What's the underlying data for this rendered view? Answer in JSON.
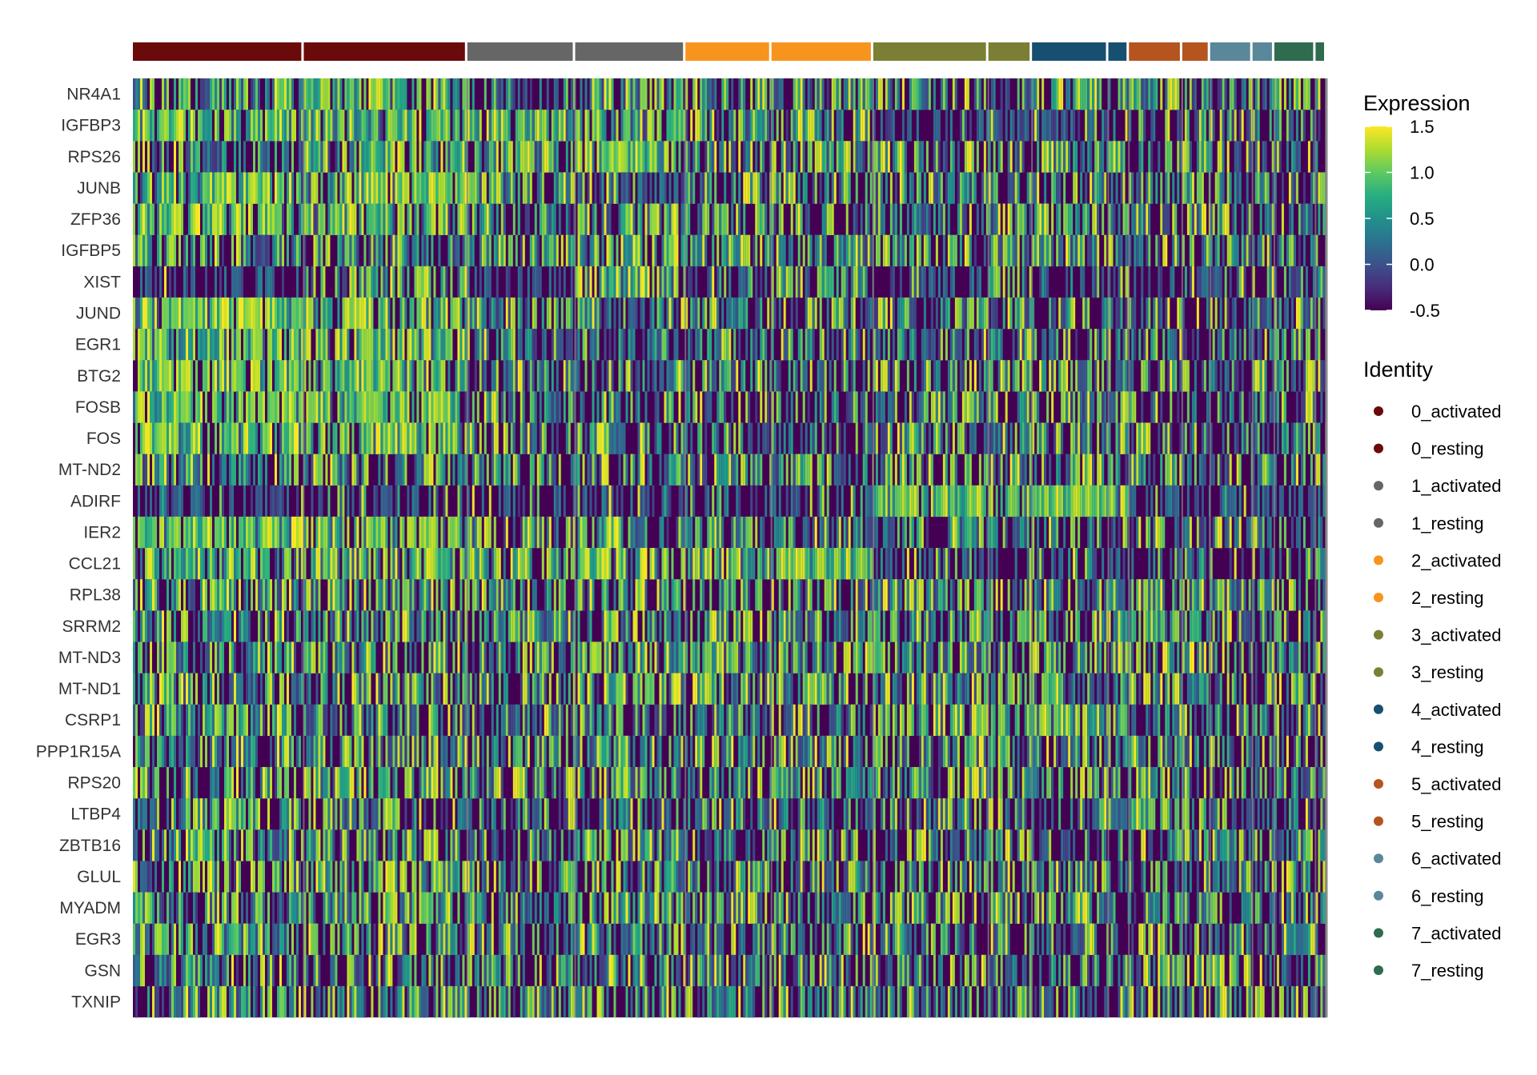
{
  "chart_data": {
    "type": "heatmap",
    "title": "",
    "xlabel": "",
    "ylabel": "",
    "genes": [
      "NR4A1",
      "IGFBP3",
      "RPS26",
      "JUNB",
      "ZFP36",
      "IGFBP5",
      "XIST",
      "JUND",
      "EGR1",
      "BTG2",
      "FOSB",
      "FOS",
      "MT-ND2",
      "ADIRF",
      "IER2",
      "CCL21",
      "RPL38",
      "SRRM2",
      "MT-ND3",
      "MT-ND1",
      "CSRP1",
      "PPP1R15A",
      "RPS20",
      "LTBP4",
      "ZBTB16",
      "GLUL",
      "MYADM",
      "EGR3",
      "GSN",
      "TXNIP"
    ],
    "identities": [
      {
        "name": "0_activated",
        "color": "#6b0a0a",
        "share": 0.141
      },
      {
        "name": "0_resting",
        "color": "#6b0a0a",
        "share": 0.135
      },
      {
        "name": "1_activated",
        "color": "#666666",
        "share": 0.089
      },
      {
        "name": "1_resting",
        "color": "#666666",
        "share": 0.091
      },
      {
        "name": "2_activated",
        "color": "#f7941d",
        "share": 0.071
      },
      {
        "name": "2_resting",
        "color": "#f7941d",
        "share": 0.084
      },
      {
        "name": "3_activated",
        "color": "#7a7f35",
        "share": 0.095
      },
      {
        "name": "3_resting",
        "color": "#7a7f35",
        "share": 0.036
      },
      {
        "name": "4_activated",
        "color": "#174f70",
        "share": 0.063
      },
      {
        "name": "4_resting",
        "color": "#174f70",
        "share": 0.017
      },
      {
        "name": "5_activated",
        "color": "#b5541f",
        "share": 0.044
      },
      {
        "name": "5_resting",
        "color": "#b5541f",
        "share": 0.023
      },
      {
        "name": "6_activated",
        "color": "#5a8799",
        "share": 0.035
      },
      {
        "name": "6_resting",
        "color": "#5a8799",
        "share": 0.018
      },
      {
        "name": "7_activated",
        "color": "#2e6b4f",
        "share": 0.034
      },
      {
        "name": "7_resting",
        "color": "#2e6b4f",
        "share": 0.009
      }
    ],
    "expression_scale": {
      "title": "Expression",
      "min": -0.5,
      "max": 1.5,
      "ticks": [
        "1.5",
        "1.0",
        "0.5",
        "0.0",
        "-0.5"
      ],
      "colormap": "viridis"
    },
    "legend": {
      "title": "Identity",
      "placement": "right"
    },
    "high_expression_pattern": {
      "NR4A1": [
        0.55,
        0.75,
        0.3,
        0.55,
        0.45,
        0.35,
        0.4,
        0.35,
        0.5,
        0.3,
        0.4,
        0.3,
        0.45,
        0.4,
        0.5,
        0.4
      ],
      "IGFBP3": [
        0.8,
        0.75,
        0.8,
        0.7,
        0.6,
        0.55,
        0.05,
        0.05,
        0.1,
        0.05,
        0.3,
        0.2,
        0.3,
        0.2,
        0.35,
        0.3
      ],
      "RPS26": [
        0.3,
        0.75,
        0.5,
        0.7,
        0.3,
        0.65,
        0.45,
        0.35,
        0.45,
        0.4,
        0.4,
        0.35,
        0.35,
        0.4,
        0.3,
        0.3
      ],
      "JUNB": [
        0.85,
        0.8,
        0.45,
        0.3,
        0.4,
        0.35,
        0.4,
        0.4,
        0.35,
        0.3,
        0.4,
        0.3,
        0.3,
        0.3,
        0.3,
        0.35
      ],
      "ZFP36": [
        0.75,
        0.75,
        0.35,
        0.3,
        0.4,
        0.35,
        0.45,
        0.45,
        0.4,
        0.3,
        0.35,
        0.3,
        0.3,
        0.35,
        0.3,
        0.35
      ],
      "IGFBP5": [
        0.45,
        0.4,
        0.55,
        0.55,
        0.5,
        0.45,
        0.6,
        0.6,
        0.55,
        0.4,
        0.35,
        0.35,
        0.3,
        0.3,
        0.3,
        0.35
      ],
      "XIST": [
        0.02,
        0.45,
        0.02,
        0.5,
        0.05,
        0.5,
        0.05,
        0.6,
        0.1,
        0.4,
        0.1,
        0.35,
        0.15,
        0.3,
        0.05,
        0.4
      ],
      "JUND": [
        0.85,
        0.7,
        0.4,
        0.3,
        0.4,
        0.3,
        0.35,
        0.3,
        0.3,
        0.25,
        0.3,
        0.3,
        0.3,
        0.3,
        0.3,
        0.3
      ],
      "EGR1": [
        0.7,
        0.8,
        0.3,
        0.25,
        0.35,
        0.3,
        0.4,
        0.45,
        0.35,
        0.35,
        0.35,
        0.3,
        0.3,
        0.3,
        0.3,
        0.3
      ],
      "BTG2": [
        0.75,
        0.8,
        0.35,
        0.3,
        0.4,
        0.3,
        0.45,
        0.5,
        0.4,
        0.4,
        0.3,
        0.35,
        0.3,
        0.3,
        0.3,
        0.3
      ],
      "FOSB": [
        0.8,
        0.85,
        0.3,
        0.25,
        0.35,
        0.3,
        0.35,
        0.4,
        0.35,
        0.35,
        0.3,
        0.3,
        0.3,
        0.3,
        0.3,
        0.3
      ],
      "FOS": [
        0.8,
        0.75,
        0.35,
        0.3,
        0.35,
        0.3,
        0.35,
        0.35,
        0.3,
        0.3,
        0.3,
        0.3,
        0.3,
        0.3,
        0.3,
        0.3
      ],
      "MT-ND2": [
        0.45,
        0.5,
        0.35,
        0.55,
        0.4,
        0.45,
        0.4,
        0.4,
        0.4,
        0.35,
        0.35,
        0.35,
        0.35,
        0.35,
        0.35,
        0.35
      ],
      "ADIRF": [
        0.1,
        0.1,
        0.1,
        0.1,
        0.15,
        0.1,
        0.9,
        0.75,
        0.95,
        0.9,
        0.15,
        0.15,
        0.2,
        0.15,
        0.15,
        0.15
      ],
      "IER2": [
        0.8,
        0.75,
        0.4,
        0.35,
        0.4,
        0.35,
        0.4,
        0.4,
        0.35,
        0.35,
        0.3,
        0.3,
        0.3,
        0.3,
        0.3,
        0.3
      ],
      "CCL21": [
        0.7,
        0.7,
        0.65,
        0.65,
        0.7,
        0.75,
        0.15,
        0.15,
        0.1,
        0.1,
        0.15,
        0.15,
        0.15,
        0.15,
        0.2,
        0.2
      ],
      "RPL38": [
        0.45,
        0.5,
        0.4,
        0.45,
        0.4,
        0.45,
        0.4,
        0.4,
        0.35,
        0.35,
        0.4,
        0.4,
        0.35,
        0.35,
        0.35,
        0.35
      ],
      "SRRM2": [
        0.45,
        0.45,
        0.45,
        0.45,
        0.45,
        0.45,
        0.45,
        0.45,
        0.4,
        0.4,
        0.45,
        0.45,
        0.4,
        0.4,
        0.4,
        0.4
      ],
      "MT-ND3": [
        0.45,
        0.45,
        0.4,
        0.65,
        0.45,
        0.45,
        0.4,
        0.45,
        0.35,
        0.4,
        0.45,
        0.4,
        0.35,
        0.35,
        0.35,
        0.35
      ],
      "MT-ND1": [
        0.45,
        0.45,
        0.4,
        0.6,
        0.45,
        0.45,
        0.45,
        0.5,
        0.35,
        0.4,
        0.5,
        0.4,
        0.35,
        0.35,
        0.35,
        0.35
      ],
      "CSRP1": [
        0.45,
        0.4,
        0.3,
        0.35,
        0.35,
        0.35,
        0.6,
        0.55,
        0.65,
        0.5,
        0.35,
        0.35,
        0.3,
        0.3,
        0.3,
        0.3
      ],
      "PPP1R15A": [
        0.5,
        0.55,
        0.4,
        0.4,
        0.45,
        0.4,
        0.5,
        0.5,
        0.45,
        0.4,
        0.4,
        0.4,
        0.35,
        0.35,
        0.35,
        0.35
      ],
      "RPS20": [
        0.4,
        0.6,
        0.4,
        0.5,
        0.4,
        0.5,
        0.45,
        0.45,
        0.45,
        0.4,
        0.4,
        0.4,
        0.4,
        0.4,
        0.35,
        0.35
      ],
      "LTBP4": [
        0.4,
        0.35,
        0.3,
        0.3,
        0.3,
        0.3,
        0.3,
        0.3,
        0.2,
        0.25,
        0.7,
        0.7,
        0.4,
        0.4,
        0.35,
        0.35
      ],
      "ZBTB16": [
        0.4,
        0.35,
        0.25,
        0.45,
        0.35,
        0.4,
        0.3,
        0.5,
        0.2,
        0.3,
        0.3,
        0.3,
        0.35,
        0.3,
        0.3,
        0.3
      ],
      "GLUL": [
        0.5,
        0.5,
        0.4,
        0.45,
        0.4,
        0.4,
        0.4,
        0.4,
        0.35,
        0.35,
        0.35,
        0.35,
        0.35,
        0.35,
        0.35,
        0.35
      ],
      "MYADM": [
        0.5,
        0.6,
        0.35,
        0.55,
        0.4,
        0.35,
        0.4,
        0.4,
        0.35,
        0.35,
        0.35,
        0.35,
        0.35,
        0.35,
        0.35,
        0.35
      ],
      "EGR3": [
        0.45,
        0.5,
        0.3,
        0.5,
        0.35,
        0.3,
        0.35,
        0.35,
        0.15,
        0.2,
        0.4,
        0.35,
        0.35,
        0.3,
        0.3,
        0.3
      ],
      "GSN": [
        0.35,
        0.35,
        0.35,
        0.4,
        0.35,
        0.35,
        0.35,
        0.35,
        0.3,
        0.3,
        0.7,
        0.8,
        0.65,
        0.6,
        0.35,
        0.35
      ],
      "TXNIP": [
        0.35,
        0.4,
        0.35,
        0.4,
        0.45,
        0.45,
        0.35,
        0.35,
        0.3,
        0.3,
        0.45,
        0.55,
        0.4,
        0.4,
        0.35,
        0.35
      ]
    }
  }
}
